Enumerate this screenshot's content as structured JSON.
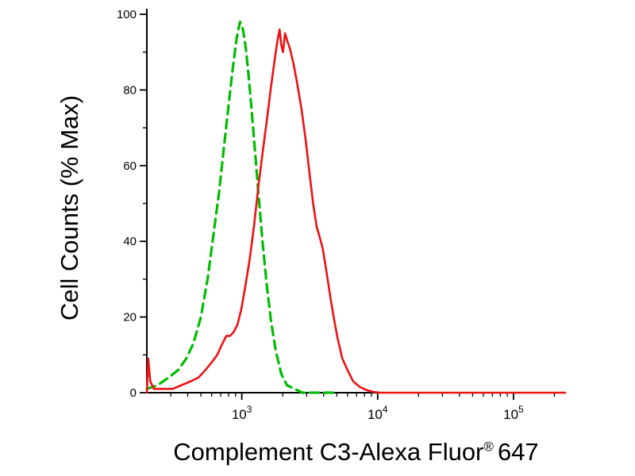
{
  "chart_data": {
    "type": "line",
    "title": "",
    "ylabel": "Cell Counts (% Max)",
    "xlabel_parts": {
      "pre": "Complement C3-Alexa Fluor",
      "registered": "®",
      "post": "647"
    },
    "x_scale": "log",
    "xlim": [
      200,
      240000
    ],
    "ylim": [
      0,
      100
    ],
    "grid": false,
    "legend": "none",
    "y_ticks": [
      {
        "label": "0",
        "value": 0
      },
      {
        "label": "20",
        "value": 20
      },
      {
        "label": "40",
        "value": 40
      },
      {
        "label": "60",
        "value": 60
      },
      {
        "label": "80",
        "value": 80
      },
      {
        "label": "100",
        "value": 100
      }
    ],
    "y_minor_ticks": [
      10,
      30,
      50,
      70,
      90
    ],
    "x_major_ticks": [
      {
        "base": "10",
        "exp": "3",
        "value": 1000
      },
      {
        "base": "10",
        "exp": "4",
        "value": 10000
      },
      {
        "base": "10",
        "exp": "5",
        "value": 100000
      }
    ],
    "series": [
      {
        "name": "green-dashed",
        "color": "#00bb00",
        "dash": [
          11,
          7
        ],
        "width": 3.2,
        "points": [
          [
            200,
            1
          ],
          [
            240,
            2
          ],
          [
            290,
            4
          ],
          [
            340,
            6
          ],
          [
            390,
            9
          ],
          [
            440,
            13
          ],
          [
            500,
            20
          ],
          [
            560,
            30
          ],
          [
            620,
            42
          ],
          [
            680,
            53
          ],
          [
            740,
            65
          ],
          [
            800,
            76
          ],
          [
            860,
            86
          ],
          [
            920,
            94
          ],
          [
            970,
            98
          ],
          [
            1020,
            96
          ],
          [
            1070,
            91
          ],
          [
            1120,
            84
          ],
          [
            1180,
            75
          ],
          [
            1250,
            64
          ],
          [
            1330,
            52
          ],
          [
            1420,
            40
          ],
          [
            1520,
            29
          ],
          [
            1640,
            19
          ],
          [
            1780,
            11
          ],
          [
            1950,
            5
          ],
          [
            2150,
            2
          ],
          [
            2450,
            1
          ],
          [
            2800,
            0
          ],
          [
            5000,
            0
          ]
        ]
      },
      {
        "name": "red-solid",
        "color": "#ee1111",
        "dash": null,
        "width": 2.6,
        "points": [
          [
            200,
            0
          ],
          [
            205,
            9
          ],
          [
            212,
            3
          ],
          [
            225,
            1
          ],
          [
            260,
            1
          ],
          [
            310,
            1
          ],
          [
            360,
            2
          ],
          [
            420,
            3
          ],
          [
            480,
            4
          ],
          [
            540,
            6
          ],
          [
            600,
            8
          ],
          [
            660,
            10
          ],
          [
            720,
            13
          ],
          [
            770,
            15
          ],
          [
            820,
            15
          ],
          [
            870,
            16
          ],
          [
            930,
            18
          ],
          [
            990,
            22
          ],
          [
            1060,
            28
          ],
          [
            1140,
            35
          ],
          [
            1230,
            44
          ],
          [
            1330,
            55
          ],
          [
            1430,
            64
          ],
          [
            1530,
            72
          ],
          [
            1630,
            80
          ],
          [
            1730,
            87
          ],
          [
            1830,
            93
          ],
          [
            1900,
            96
          ],
          [
            1950,
            92
          ],
          [
            2010,
            90
          ],
          [
            2080,
            95
          ],
          [
            2160,
            93
          ],
          [
            2260,
            91
          ],
          [
            2400,
            87
          ],
          [
            2550,
            82
          ],
          [
            2750,
            75
          ],
          [
            2950,
            67
          ],
          [
            3150,
            58
          ],
          [
            3350,
            50
          ],
          [
            3550,
            44
          ],
          [
            3750,
            41
          ],
          [
            3950,
            38
          ],
          [
            4200,
            32
          ],
          [
            4500,
            25
          ],
          [
            4800,
            19
          ],
          [
            5100,
            14
          ],
          [
            5500,
            9
          ],
          [
            6000,
            6
          ],
          [
            6600,
            3
          ],
          [
            7400,
            1.5
          ],
          [
            8300,
            0.7
          ],
          [
            9300,
            0.2
          ],
          [
            10500,
            0
          ],
          [
            240000,
            0
          ]
        ]
      }
    ]
  }
}
